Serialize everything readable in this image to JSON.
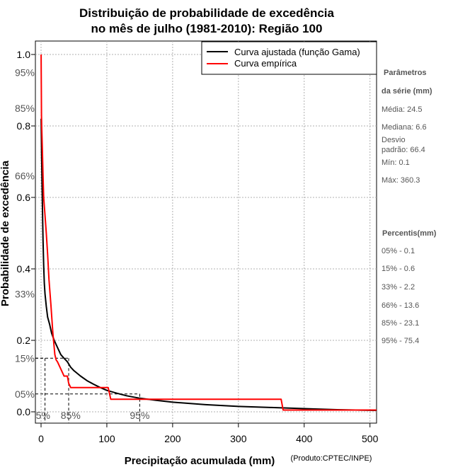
{
  "chart_data": {
    "type": "line",
    "title": [
      "Distribuição de probabilidade de excedência",
      "no mês de julho (1981-2010): Região 100"
    ],
    "xlabel": "Precipitação acumulada (mm)",
    "ylabel": "Probabilidade de excedência",
    "credit": "(Produto:CPTEC/INPE)",
    "xlim": [
      0,
      510
    ],
    "ylim": [
      0,
      1
    ],
    "x_ticks": [
      "0",
      "100",
      "200",
      "300",
      "400",
      "500"
    ],
    "y_ticks": [
      "0.0",
      "0.2",
      "0.4",
      "0.6",
      "0.8",
      "1.0"
    ],
    "percent_labels": [
      "95%",
      "85%",
      "66%",
      "33%",
      "15%",
      "05%"
    ],
    "x_percent_labels": [
      "5%",
      "85%",
      "95%"
    ],
    "percentile_guides": [
      {
        "label": "05%",
        "x": 0.1,
        "p": 0.05
      },
      {
        "label": "15%",
        "x": 0.6,
        "p": 0.15
      },
      {
        "label": "33%",
        "x": 2.2,
        "p": 0.33
      },
      {
        "label": "66%",
        "x": 13.6,
        "p": 0.66
      },
      {
        "label": "85%",
        "x": 23.1,
        "p": 0.85
      },
      {
        "label": "95%",
        "x": 75.4,
        "p": 0.95
      }
    ],
    "dashed_guides": [
      {
        "x": 6,
        "p": 0.15
      },
      {
        "x": 42,
        "p": 0.15
      },
      {
        "x": 150,
        "p": 0.05
      }
    ],
    "legend": [
      "Curva ajustada (função Gama)",
      "Curva empírica"
    ],
    "series": [
      {
        "name": "Curva ajustada (função Gama)",
        "color": "#000000",
        "x": [
          0.1,
          0.5,
          1,
          2,
          3,
          4,
          5,
          6,
          8,
          10,
          13,
          16,
          20,
          25,
          30,
          35,
          40,
          45,
          50,
          60,
          70,
          80,
          90,
          100,
          115,
          130,
          150,
          175,
          200,
          250,
          300,
          350,
          400,
          450,
          510
        ],
        "y": [
          0.82,
          0.76,
          0.7,
          0.58,
          0.48,
          0.41,
          0.36,
          0.33,
          0.295,
          0.265,
          0.245,
          0.22,
          0.2,
          0.18,
          0.16,
          0.15,
          0.14,
          0.125,
          0.115,
          0.1,
          0.087,
          0.077,
          0.068,
          0.06,
          0.052,
          0.045,
          0.038,
          0.032,
          0.027,
          0.02,
          0.015,
          0.012,
          0.009,
          0.006,
          0.004
        ]
      },
      {
        "name": "Curva empírica",
        "color": "#ff0000",
        "x": [
          0.1,
          0.2,
          0.4,
          0.6,
          1,
          2,
          3,
          4,
          6,
          8,
          10,
          12,
          15,
          18,
          21,
          23,
          25,
          30,
          35,
          40,
          42,
          45,
          102,
          106,
          365,
          368,
          510
        ],
        "y": [
          1.0,
          0.96,
          0.9,
          0.83,
          0.8,
          0.73,
          0.66,
          0.6,
          0.55,
          0.5,
          0.44,
          0.37,
          0.3,
          0.22,
          0.16,
          0.145,
          0.14,
          0.12,
          0.1,
          0.1,
          0.08,
          0.068,
          0.068,
          0.035,
          0.035,
          0.005,
          0.005
        ]
      }
    ]
  },
  "side_panel": {
    "params_title": [
      "Parâmetros",
      "da série (mm)"
    ],
    "params": [
      "Média: 24.5",
      "Mediana: 6.6",
      "Desvio",
      "padrão: 66.4",
      "Mín: 0.1",
      "Máx: 360.3"
    ],
    "percentis_title": "Percentis(mm)",
    "percentis": [
      "05% - 0.1",
      "15% - 0.6",
      "33% - 2.2",
      "66% - 13.6",
      "85% - 23.1",
      "95% - 75.4"
    ]
  }
}
